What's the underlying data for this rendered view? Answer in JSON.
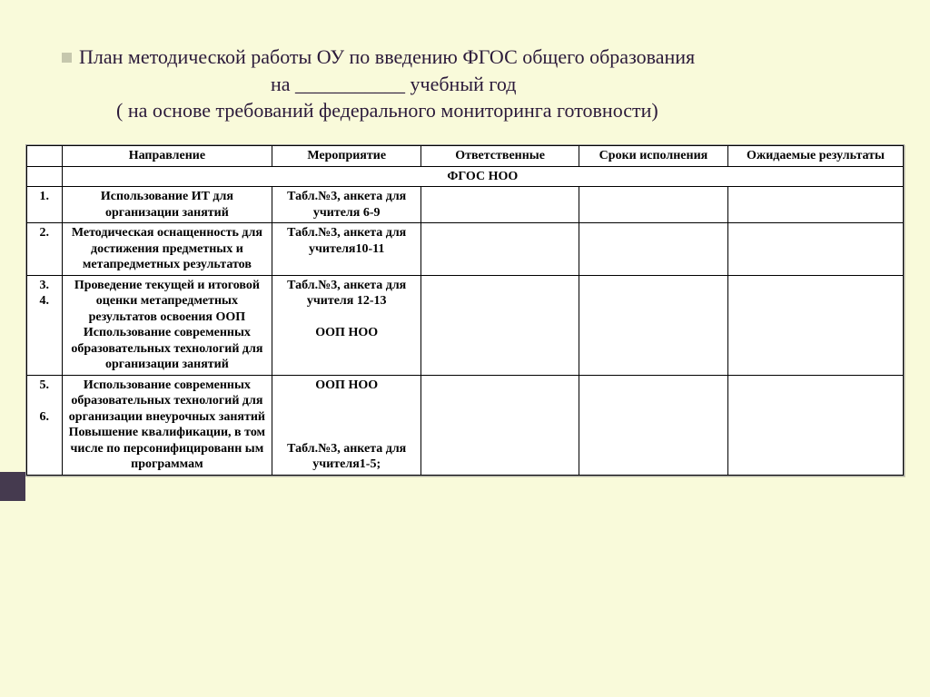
{
  "colors": {
    "page_bg": "#f9fada",
    "accent_bar": "#453a4f",
    "title_text": "#2b1a3a",
    "table_border": "#000000",
    "table_bg": "#ffffff",
    "bullet": "#c6c7ad"
  },
  "title": {
    "line1": "План методической работы ОУ по введению ФГОС общего образования",
    "line2": "на ___________ учебный год",
    "line3": "( на основе требований федерального мониторинга готовности)"
  },
  "table": {
    "headers": {
      "num": "",
      "direction": "Направление",
      "event": "Мероприятие",
      "responsible": "Ответственные",
      "deadline": "Сроки исполнения",
      "result": "Ожидаемые результаты"
    },
    "section_label": "ФГОС НОО",
    "rows": [
      {
        "num": "1.",
        "direction": "Использование ИТ для организации занятий",
        "event": "Табл.№3, анкета для учителя 6-9",
        "responsible": "",
        "deadline": "",
        "result": ""
      },
      {
        "num": "2.",
        "direction": "Методическая оснащенность для достижения предметных и метапредметных результатов",
        "event": "Табл.№3, анкета для учителя10-11",
        "responsible": "",
        "deadline": "",
        "result": ""
      },
      {
        "num": "3.\n4.",
        "direction": "Проведение текущей и итоговой оценки метапредметных результатов освоения ООП\nИспользование современных образовательных технологий для организации занятий",
        "event": "Табл.№3, анкета для учителя 12-13\n\nООП НОО",
        "responsible": "",
        "deadline": "",
        "result": ""
      },
      {
        "num": "5.\n\n6.",
        "direction": "Использование современных образовательных технологий для организации внеурочных занятий\nПовышение квалификации, в том числе по персонифицированн ым программам",
        "event": "ООП НОО\n\n\n\nТабл.№3, анкета для учителя1-5;",
        "responsible": "",
        "deadline": "",
        "result": ""
      }
    ]
  }
}
